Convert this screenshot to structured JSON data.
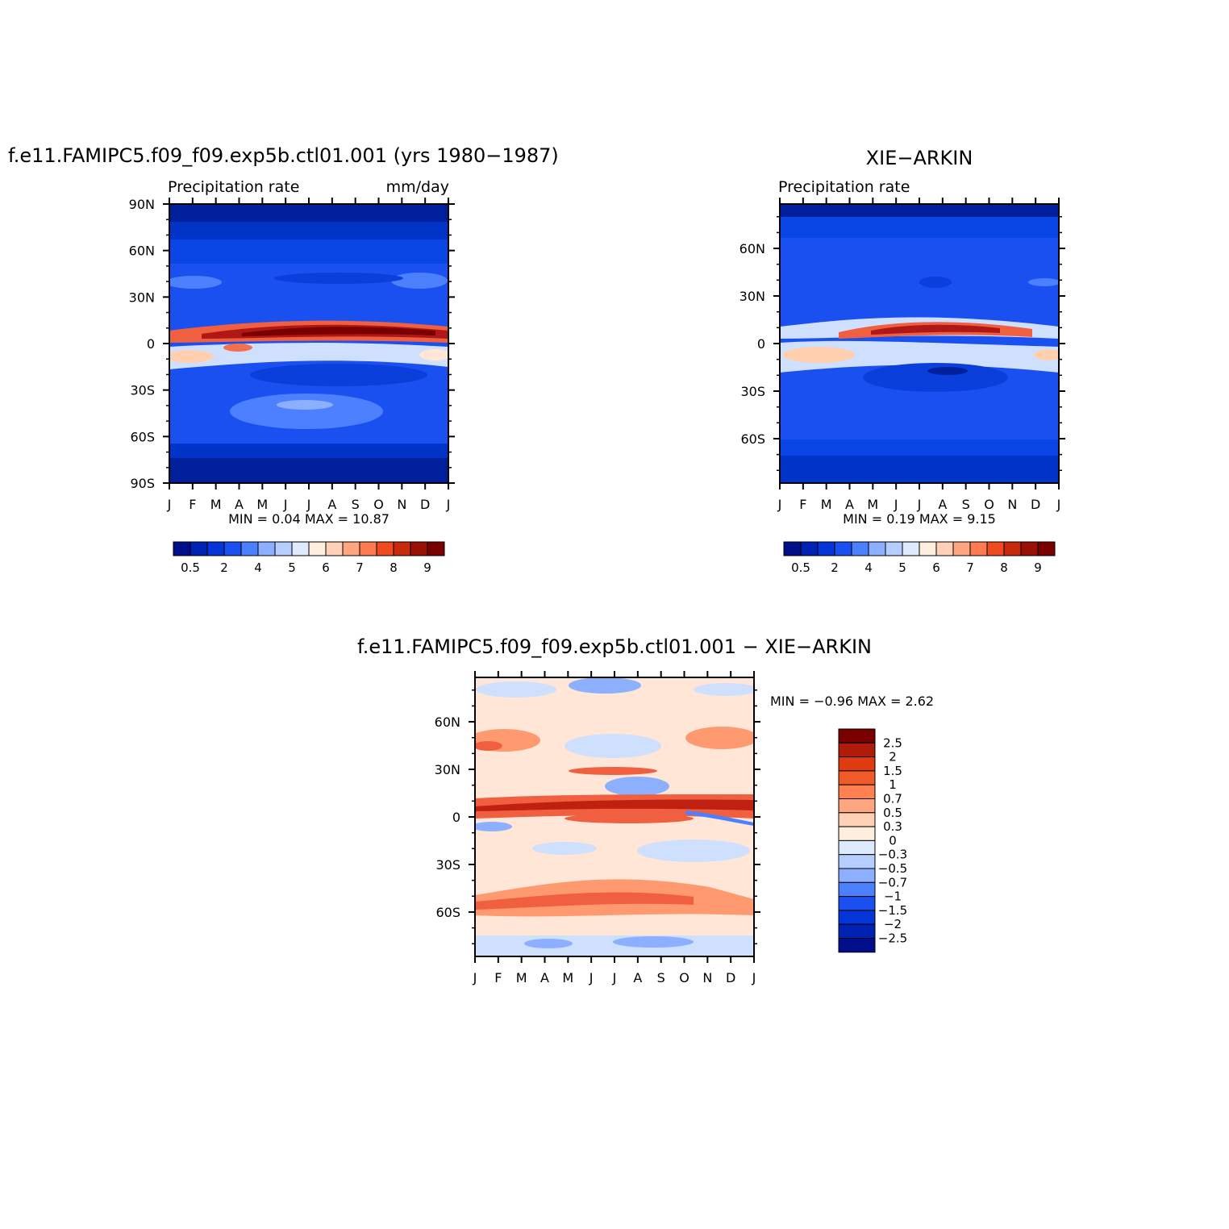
{
  "panels": [
    {
      "title": "f.e11.FAMIPC5.f09_f09.exp5b.ctl01.001 (yrs 1980−1987)",
      "left_label": "Precipitation rate",
      "right_label": "mm/day",
      "minmax": "MIN =    0.04  MAX =    10.87"
    },
    {
      "title": "XIE−ARKIN",
      "left_label": "Precipitation rate",
      "right_label": "",
      "minmax": "MIN =    0.19  MAX =     9.15"
    },
    {
      "title": "f.e11.FAMIPC5.f09_f09.exp5b.ctl01.001  −  XIE−ARKIN",
      "minmax": "MIN =   −0.96  MAX =     2.62"
    }
  ],
  "chart_data": [
    {
      "type": "heatmap",
      "title": "f.e11.FAMIPC5.f09_f09.exp5b.ctl01.001 (yrs 1980−1987)",
      "variable": "Precipitation rate",
      "units": "mm/day",
      "x_tick_labels": [
        "J",
        "F",
        "M",
        "A",
        "M",
        "J",
        "J",
        "A",
        "S",
        "O",
        "N",
        "D",
        "J"
      ],
      "y_tick_labels": [
        "90N",
        "60N",
        "30N",
        "0",
        "30S",
        "60S",
        "90S"
      ],
      "y_tick_values": [
        90,
        60,
        30,
        0,
        -30,
        -60,
        -90
      ],
      "ylim": [
        -90,
        90
      ],
      "min": 0.04,
      "max": 10.87,
      "colorbar_labels": [
        "0.5",
        "2",
        "4",
        "5",
        "6",
        "7",
        "8",
        "9"
      ],
      "colors": [
        "#000e8a",
        "#0022b4",
        "#0535d8",
        "#1a4ff0",
        "#4d80ff",
        "#8cb0ff",
        "#b6ceff",
        "#ddeaff",
        "#ffeedd",
        "#ffcfb6",
        "#ffa580",
        "#ff7a50",
        "#f04a20",
        "#c82a0c",
        "#9a1004",
        "#7a0000"
      ],
      "colorbar_orientation": "horizontal"
    },
    {
      "type": "heatmap",
      "title": "XIE−ARKIN",
      "variable": "Precipitation rate",
      "x_tick_labels": [
        "J",
        "F",
        "M",
        "A",
        "M",
        "J",
        "J",
        "A",
        "S",
        "O",
        "N",
        "D",
        "J"
      ],
      "y_tick_labels": [
        "60N",
        "30N",
        "0",
        "30S",
        "60S"
      ],
      "y_tick_values": [
        60,
        30,
        0,
        -30,
        -60
      ],
      "ylim": [
        -88,
        88
      ],
      "min": 0.19,
      "max": 9.15,
      "colorbar_labels": [
        "0.5",
        "2",
        "4",
        "5",
        "6",
        "7",
        "8",
        "9"
      ],
      "colors": [
        "#000e8a",
        "#0022b4",
        "#0535d8",
        "#1a4ff0",
        "#4d80ff",
        "#8cb0ff",
        "#b6ceff",
        "#ddeaff",
        "#ffeedd",
        "#ffcfb6",
        "#ffa580",
        "#ff7a50",
        "#f04a20",
        "#c82a0c",
        "#9a1004",
        "#7a0000"
      ],
      "colorbar_orientation": "horizontal"
    },
    {
      "type": "heatmap",
      "title": "f.e11.FAMIPC5.f09_f09.exp5b.ctl01.001  −  XIE−ARKIN",
      "x_tick_labels": [
        "J",
        "F",
        "M",
        "A",
        "M",
        "J",
        "J",
        "A",
        "S",
        "O",
        "N",
        "D",
        "J"
      ],
      "y_tick_labels": [
        "60N",
        "30N",
        "0",
        "30S",
        "60S"
      ],
      "y_tick_values": [
        60,
        30,
        0,
        -30,
        -60
      ],
      "ylim": [
        -88,
        88
      ],
      "min": -0.96,
      "max": 2.62,
      "colorbar_labels": [
        "2.5",
        "2",
        "1.5",
        "1",
        "0.7",
        "0.5",
        "0.3",
        "0",
        "−0.3",
        "−0.5",
        "−0.7",
        "−1",
        "−1.5",
        "−2",
        "−2.5"
      ],
      "colors": [
        "#7a0000",
        "#b01c0a",
        "#e03a10",
        "#f05a28",
        "#ff8050",
        "#ffa680",
        "#ffcfb6",
        "#ffeedd",
        "#ddeaff",
        "#b6ceff",
        "#8cb0ff",
        "#4d80ff",
        "#1a4ff0",
        "#0535d8",
        "#0022b4",
        "#000e8a"
      ],
      "colorbar_orientation": "vertical"
    }
  ]
}
